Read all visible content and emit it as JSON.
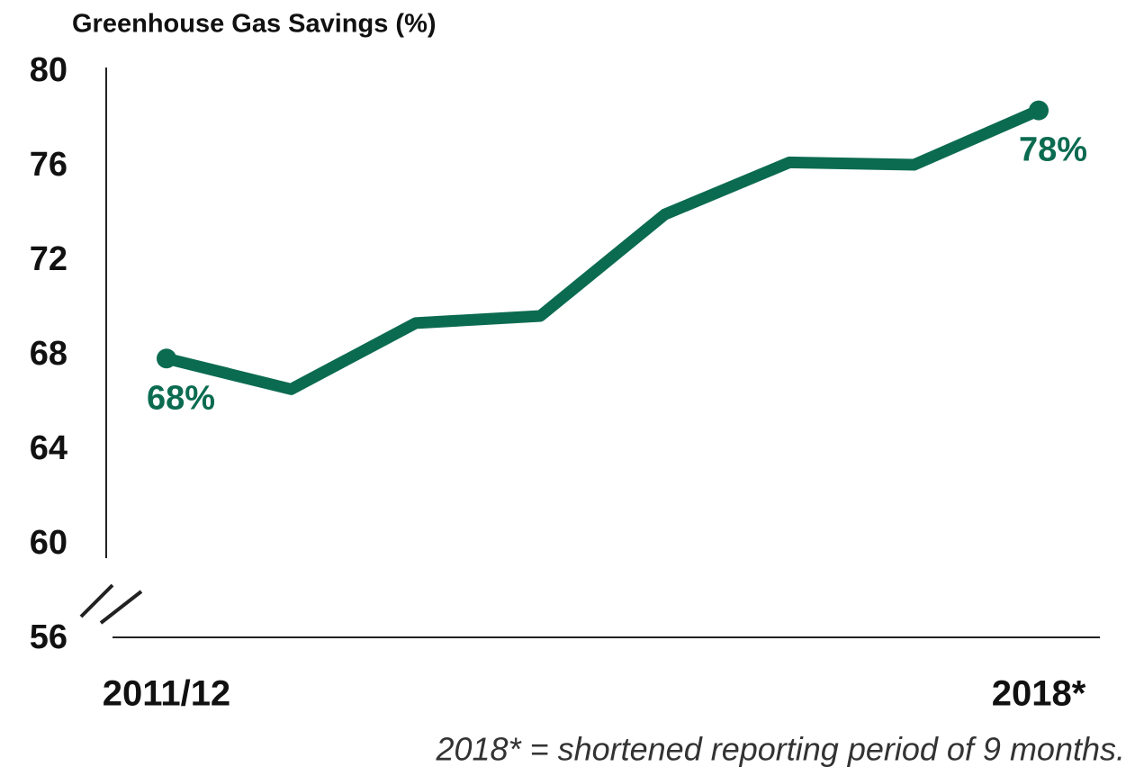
{
  "chart_data": {
    "type": "line",
    "title": "Greenhouse Gas Savings (%)",
    "categories": [
      "2011/12",
      null,
      null,
      null,
      null,
      null,
      null,
      "2018*"
    ],
    "series": [
      {
        "name": "Greenhouse Gas Savings",
        "color": "#0b6b50",
        "values": [
          67.8,
          66.5,
          69.3,
          69.6,
          73.9,
          76.1,
          76.0,
          78.3
        ],
        "value_labels": [
          "68%",
          null,
          null,
          null,
          null,
          null,
          null,
          "78%"
        ]
      }
    ],
    "ylim": [
      56,
      80
    ],
    "yticks": [
      56,
      60,
      64,
      68,
      72,
      76,
      80
    ],
    "grid": false,
    "note": "2018* = shortened reporting period of 9 months."
  }
}
